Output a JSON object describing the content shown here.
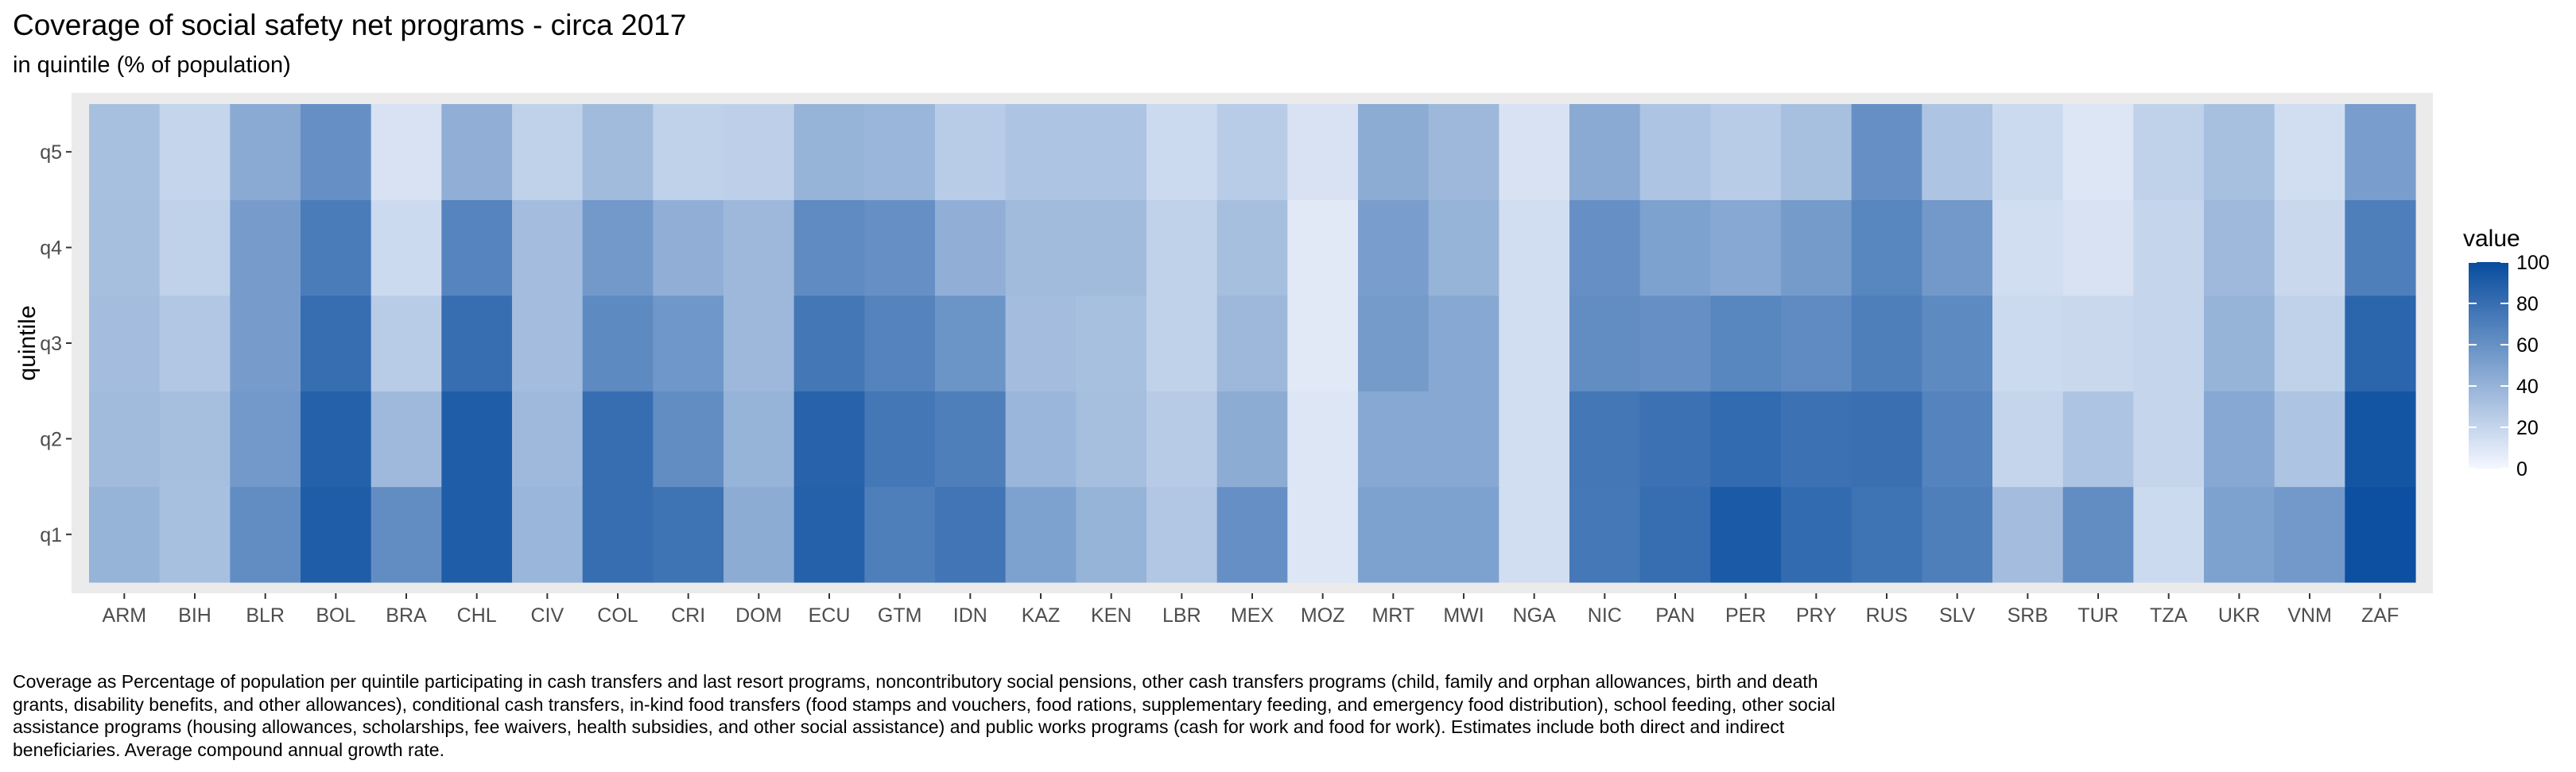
{
  "title": "Coverage of social safety net programs - circa 2017",
  "subtitle": "in quintile (% of population)",
  "caption": "Coverage as Percentage of population per quintile participating in cash transfers and last resort programs, noncontributory social pensions, other cash transfers programs (child, family and orphan allowances, birth and death grants, disability benefits, and other allowances), conditional cash transfers, in-kind food transfers (food stamps and vouchers, food rations, supplementary feeding, and emergency food distribution), school feeding, other social assistance programs (housing allowances, scholarships, fee waivers, health subsidies, and other social assistance) and public works programs (cash for work and food for work). Estimates include both direct and indirect beneficiaries. Average compound annual growth rate.",
  "chart_data": {
    "type": "heatmap",
    "xlabel": "",
    "ylabel": "quintile",
    "x": [
      "ARM",
      "BIH",
      "BLR",
      "BOL",
      "BRA",
      "CHL",
      "CIV",
      "COL",
      "CRI",
      "DOM",
      "ECU",
      "GTM",
      "IDN",
      "KAZ",
      "KEN",
      "LBR",
      "MEX",
      "MOZ",
      "MRT",
      "MWI",
      "NGA",
      "NIC",
      "PAN",
      "PER",
      "PRY",
      "RUS",
      "SLV",
      "SRB",
      "TUR",
      "TZA",
      "UKR",
      "VNM",
      "ZAF"
    ],
    "y": [
      "q1",
      "q2",
      "q3",
      "q4",
      "q5"
    ],
    "values": {
      "q1": [
        40,
        32,
        62,
        90,
        62,
        90,
        38,
        80,
        77,
        44,
        88,
        70,
        76,
        50,
        40,
        28,
        60,
        10,
        50,
        50,
        15,
        74,
        80,
        92,
        82,
        77,
        70,
        34,
        62,
        17,
        50,
        55,
        98
      ],
      "q2": [
        35,
        33,
        55,
        88,
        36,
        90,
        36,
        80,
        62,
        40,
        87,
        75,
        70,
        38,
        33,
        26,
        44,
        10,
        46,
        46,
        15,
        75,
        78,
        82,
        78,
        79,
        68,
        20,
        30,
        20,
        46,
        30,
        95
      ],
      "q3": [
        34,
        28,
        53,
        80,
        25,
        80,
        34,
        64,
        56,
        37,
        75,
        68,
        58,
        34,
        32,
        22,
        37,
        8,
        54,
        46,
        15,
        62,
        60,
        66,
        63,
        70,
        64,
        17,
        18,
        20,
        40,
        22,
        85
      ],
      "q4": [
        33,
        22,
        53,
        72,
        17,
        67,
        34,
        55,
        42,
        37,
        63,
        60,
        42,
        35,
        35,
        22,
        33,
        8,
        52,
        40,
        15,
        60,
        50,
        46,
        54,
        66,
        55,
        15,
        12,
        20,
        36,
        18,
        70
      ],
      "q5": [
        32,
        20,
        45,
        60,
        12,
        42,
        22,
        35,
        22,
        23,
        40,
        38,
        25,
        30,
        30,
        17,
        25,
        12,
        44,
        37,
        12,
        45,
        30,
        25,
        32,
        60,
        30,
        17,
        10,
        22,
        32,
        15,
        52
      ]
    },
    "color_scale": {
      "min": 0,
      "max": 100,
      "low_color": "#f4f7ff",
      "high_color": "#084c9e"
    },
    "legend": {
      "title": "value",
      "position": "right",
      "ticks": [
        0,
        20,
        40,
        60,
        80,
        100
      ]
    },
    "panel_background": "#ebebeb"
  }
}
